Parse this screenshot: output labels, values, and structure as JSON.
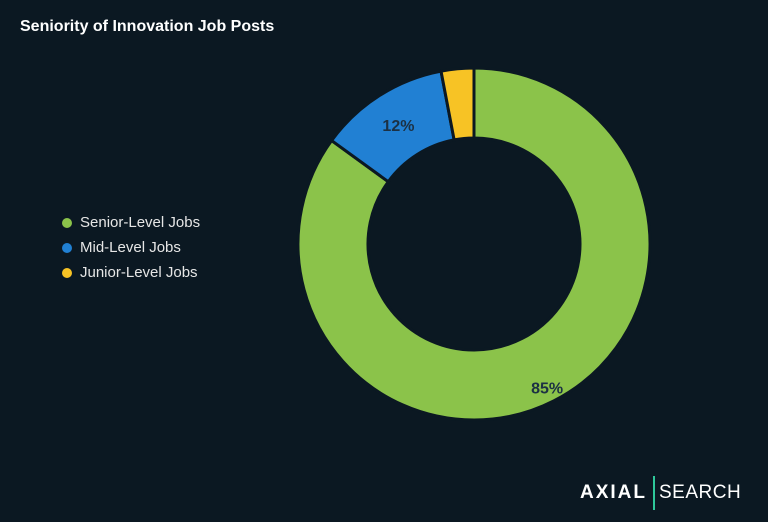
{
  "chart_data": {
    "type": "pie",
    "variant": "donut",
    "title": "Seniority of Innovation Job Posts",
    "categories": [
      "Senior-Level Jobs",
      "Mid-Level Jobs",
      "Junior-Level Jobs"
    ],
    "values": [
      85,
      12,
      3
    ],
    "data_labels": [
      "85%",
      "12%",
      ""
    ],
    "colors": [
      "#8bc34a",
      "#2180d3",
      "#f7c325"
    ],
    "legend_position": "left"
  },
  "background_color": "#0b1822",
  "logo": {
    "left": "AXIAL",
    "right": "SEARCH",
    "accent_color": "#2ec79a"
  }
}
